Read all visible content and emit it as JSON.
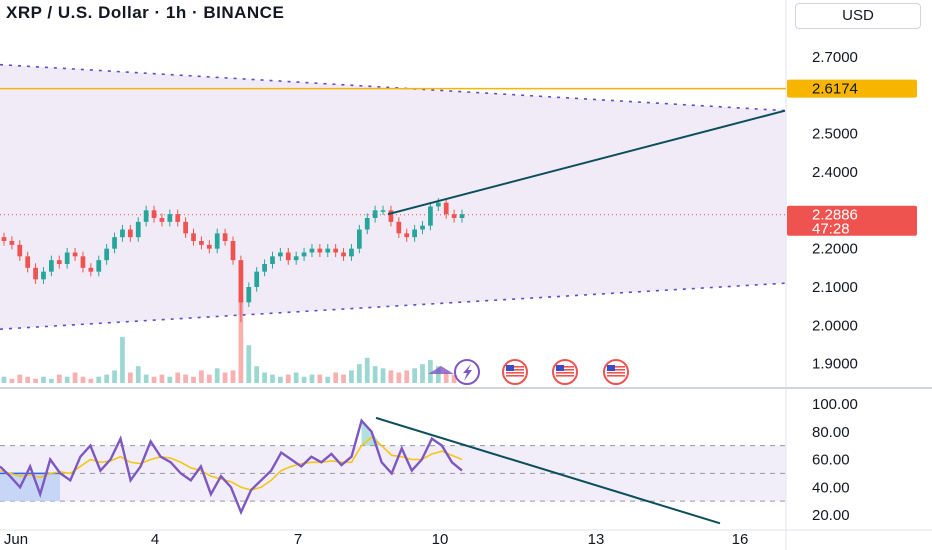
{
  "header": {
    "title": "XRP / U.S. Dollar · 1h · BINANCE",
    "currency": "USD"
  },
  "colors": {
    "up": "#26a69a",
    "down": "#ef5350",
    "channel_fill": "#ede7f6",
    "channel_line": "#5b4dc4",
    "trendline": "#0b4f5c",
    "horizontal": "#f7b500",
    "rsi": "#7e57c2",
    "rsi_ma": "#f5c518"
  },
  "chart_data": [
    {
      "type": "candlestick",
      "symbol": "XRP / U.S. Dollar",
      "interval": "1h",
      "exchange": "BINANCE",
      "x_tick_labels": [
        "Jun",
        "4",
        "7",
        "10",
        "13",
        "16"
      ],
      "y_tick_labels": [
        "2.7000",
        "2.5000",
        "2.4000",
        "2.2000",
        "2.1000",
        "2.0000",
        "1.9000"
      ],
      "ylim": [
        1.85,
        2.78
      ],
      "horizontal_level": {
        "value": 2.6174,
        "label": "2.6174"
      },
      "last_price": {
        "value": 2.2886,
        "label": "2.2886",
        "countdown": "47:28"
      },
      "close_series": [
        2.22,
        2.21,
        2.18,
        2.15,
        2.12,
        2.14,
        2.17,
        2.16,
        2.19,
        2.18,
        2.15,
        2.14,
        2.17,
        2.2,
        2.23,
        2.25,
        2.23,
        2.27,
        2.3,
        2.28,
        2.27,
        2.29,
        2.27,
        2.24,
        2.22,
        2.21,
        2.2,
        2.24,
        2.22,
        2.17,
        2.06,
        2.1,
        2.14,
        2.16,
        2.18,
        2.19,
        2.17,
        2.18,
        2.19,
        2.2,
        2.19,
        2.2,
        2.19,
        2.18,
        2.2,
        2.25,
        2.28,
        2.3,
        2.3,
        2.27,
        2.24,
        2.23,
        2.25,
        2.26,
        2.31,
        2.32,
        2.29,
        2.28,
        2.29
      ],
      "volume_series": [
        3,
        2,
        4,
        3,
        2,
        3,
        2,
        4,
        3,
        5,
        3,
        2,
        3,
        4,
        6,
        22,
        5,
        8,
        4,
        3,
        4,
        3,
        5,
        4,
        3,
        6,
        4,
        7,
        5,
        6,
        40,
        18,
        8,
        5,
        4,
        3,
        4,
        5,
        3,
        4,
        4,
        3,
        5,
        4,
        6,
        9,
        12,
        8,
        7,
        6,
        5,
        6,
        7,
        9,
        11,
        8,
        5,
        4,
        3
      ],
      "channel": {
        "upper": [
          2.68,
          2.56
        ],
        "lower": [
          1.99,
          2.11
        ]
      },
      "rising_trendline": {
        "from": 2.29,
        "to": 2.56
      }
    },
    {
      "type": "line",
      "indicator": "RSI",
      "y_tick_labels": [
        "100.00",
        "80.00",
        "60.00",
        "40.00",
        "20.00"
      ],
      "ylim": [
        14,
        104
      ],
      "bands": [
        70,
        30
      ],
      "mid": 50,
      "series": [
        {
          "values": [
            55,
            48,
            40,
            55,
            35,
            60,
            50,
            45,
            62,
            70,
            52,
            60,
            75,
            45,
            55,
            73,
            62,
            58,
            50,
            45,
            55,
            35,
            48,
            40,
            22,
            38,
            45,
            52,
            65,
            60,
            55,
            62,
            58,
            64,
            56,
            62,
            88,
            80,
            58,
            50,
            68,
            52,
            60,
            75,
            70,
            58,
            52
          ]
        },
        {
          "values": [
            52,
            50,
            48,
            49,
            47,
            50,
            51,
            50,
            55,
            60,
            58,
            59,
            62,
            58,
            57,
            60,
            62,
            61,
            58,
            54,
            52,
            48,
            46,
            44,
            40,
            38,
            40,
            45,
            52,
            55,
            57,
            58,
            58,
            59,
            58,
            58,
            70,
            76,
            70,
            63,
            62,
            60,
            60,
            64,
            66,
            63,
            60
          ]
        }
      ],
      "falling_trendline": {
        "from": 90,
        "to": 14
      }
    }
  ]
}
